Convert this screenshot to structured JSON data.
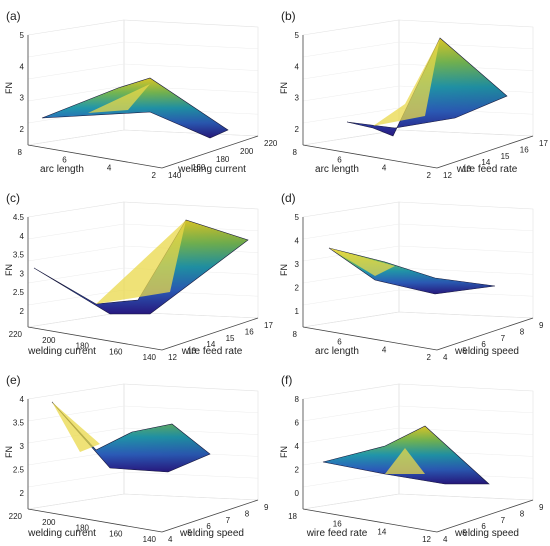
{
  "chart_data": [
    {
      "panel": "(a)",
      "type": "surface",
      "zlabel": "FN",
      "x_axis": {
        "label": "welding current",
        "ticks": [
          "140",
          "160",
          "180",
          "200",
          "220"
        ]
      },
      "y_axis": {
        "label": "arc length",
        "ticks": [
          "2",
          "4",
          "6",
          "8"
        ]
      },
      "z_axis": {
        "ticks": [
          "2",
          "3",
          "4",
          "5"
        ],
        "range": [
          2,
          5
        ]
      },
      "x_range": [
        140,
        220
      ],
      "y_range": [
        2,
        8
      ],
      "surface_points": [
        {
          "x": 140,
          "y": 2,
          "z": 2.3
        },
        {
          "x": 140,
          "y": 8,
          "z": 2.4
        },
        {
          "x": 180,
          "y": 5,
          "z": 3.3
        },
        {
          "x": 200,
          "y": 8,
          "z": 3.4
        },
        {
          "x": 220,
          "y": 2,
          "z": 2.1
        },
        {
          "x": 220,
          "y": 8,
          "z": 2.9
        }
      ]
    },
    {
      "panel": "(b)",
      "type": "surface",
      "zlabel": "FN",
      "x_axis": {
        "label": "wire feed rate",
        "ticks": [
          "12",
          "13",
          "14",
          "15",
          "16",
          "17"
        ]
      },
      "y_axis": {
        "label": "arc length",
        "ticks": [
          "2",
          "4",
          "6",
          "8"
        ]
      },
      "z_axis": {
        "ticks": [
          "2",
          "3",
          "4",
          "5"
        ],
        "range": [
          2,
          5
        ]
      },
      "x_range": [
        12,
        17
      ],
      "y_range": [
        2,
        8
      ],
      "surface_points": [
        {
          "x": 12,
          "y": 8,
          "z": 2.3
        },
        {
          "x": 13,
          "y": 5,
          "z": 2.0
        },
        {
          "x": 17,
          "y": 8,
          "z": 5.1
        },
        {
          "x": 17,
          "y": 2,
          "z": 3.2
        },
        {
          "x": 12,
          "y": 2,
          "z": 2.1
        }
      ]
    },
    {
      "panel": "(c)",
      "type": "surface",
      "zlabel": "FN",
      "x_axis": {
        "label": "wire feed rate",
        "ticks": [
          "12",
          "13",
          "14",
          "15",
          "16",
          "17"
        ]
      },
      "y_axis": {
        "label": "welding current",
        "ticks": [
          "140",
          "160",
          "180",
          "200",
          "220"
        ]
      },
      "z_axis": {
        "ticks": [
          "2",
          "2.5",
          "3",
          "3.5",
          "4",
          "4.5"
        ],
        "range": [
          2,
          4.5
        ]
      },
      "x_range": [
        12,
        17
      ],
      "y_range": [
        140,
        220
      ],
      "surface_points": [
        {
          "x": 12,
          "y": 220,
          "z": 3.1
        },
        {
          "x": 13,
          "y": 180,
          "z": 2.3
        },
        {
          "x": 16,
          "y": 220,
          "z": 4.3
        },
        {
          "x": 17,
          "y": 140,
          "z": 3.9
        },
        {
          "x": 12,
          "y": 140,
          "z": 2.2
        }
      ]
    },
    {
      "panel": "(d)",
      "type": "surface",
      "zlabel": "FN",
      "x_axis": {
        "label": "welding speed",
        "ticks": [
          "4",
          "5",
          "6",
          "7",
          "8",
          "9"
        ]
      },
      "y_axis": {
        "label": "arc length",
        "ticks": [
          "2",
          "4",
          "6",
          "8"
        ]
      },
      "z_axis": {
        "ticks": [
          "1",
          "2",
          "3",
          "4",
          "5"
        ],
        "range": [
          1,
          5
        ]
      },
      "x_range": [
        4,
        9
      ],
      "y_range": [
        2,
        8
      ],
      "surface_points": [
        {
          "x": 4,
          "y": 8,
          "z": 3.9
        },
        {
          "x": 5,
          "y": 5,
          "z": 2.3
        },
        {
          "x": 9,
          "y": 8,
          "z": 2.5
        },
        {
          "x": 9,
          "y": 2,
          "z": 1.8
        },
        {
          "x": 4,
          "y": 2,
          "z": 2.2
        }
      ]
    },
    {
      "panel": "(e)",
      "type": "surface",
      "zlabel": "FN",
      "x_axis": {
        "label": "welding speed",
        "ticks": [
          "4",
          "5",
          "6",
          "7",
          "8",
          "9"
        ]
      },
      "y_axis": {
        "label": "welding current",
        "ticks": [
          "140",
          "160",
          "180",
          "200",
          "220"
        ]
      },
      "z_axis": {
        "ticks": [
          "2",
          "2.5",
          "3",
          "3.5",
          "4"
        ],
        "range": [
          2,
          4
        ]
      },
      "x_range": [
        4,
        9
      ],
      "y_range": [
        140,
        220
      ],
      "surface_points": [
        {
          "x": 4,
          "y": 220,
          "z": 3.8
        },
        {
          "x": 6,
          "y": 180,
          "z": 2.2
        },
        {
          "x": 7,
          "y": 200,
          "z": 3.0
        },
        {
          "x": 9,
          "y": 200,
          "z": 2.6
        },
        {
          "x": 9,
          "y": 140,
          "z": 2.5
        }
      ]
    },
    {
      "panel": "(f)",
      "type": "surface",
      "zlabel": "FN",
      "x_axis": {
        "label": "welding speed",
        "ticks": [
          "4",
          "5",
          "6",
          "7",
          "8",
          "9"
        ]
      },
      "y_axis": {
        "label": "wire feed rate",
        "ticks": [
          "12",
          "14",
          "16",
          "18"
        ]
      },
      "z_axis": {
        "ticks": [
          "0",
          "2",
          "4",
          "6",
          "8"
        ],
        "range": [
          0,
          8
        ]
      },
      "x_range": [
        4,
        9
      ],
      "y_range": [
        12,
        18
      ],
      "surface_points": [
        {
          "x": 4,
          "y": 18,
          "z": 2.0
        },
        {
          "x": 6,
          "y": 16,
          "z": 3.4
        },
        {
          "x": 8,
          "y": 18,
          "z": 5.3
        },
        {
          "x": 9,
          "y": 12,
          "z": 0.2
        },
        {
          "x": 4,
          "y": 12,
          "z": 1.8
        }
      ]
    }
  ]
}
